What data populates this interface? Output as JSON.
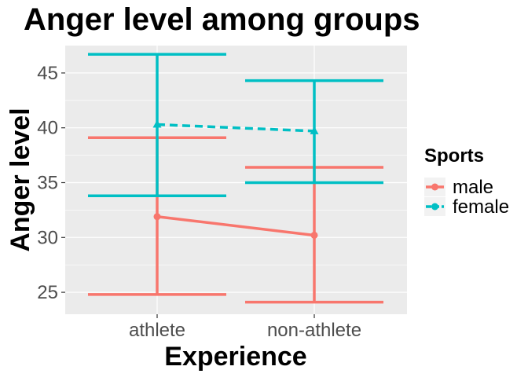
{
  "chart_data": {
    "type": "line",
    "title": "Anger level among groups",
    "xlabel": "Experience",
    "ylabel": "Anger level",
    "categories": [
      "athlete",
      "non-athlete"
    ],
    "ylim": [
      23,
      47.5
    ],
    "yticks": [
      25,
      30,
      35,
      40,
      45
    ],
    "grid": true,
    "legend": {
      "title": "Sports",
      "placement": "right"
    },
    "series": [
      {
        "name": "male",
        "color": "#F8766D",
        "linestyle": "solid",
        "marker": "circle",
        "values": [
          31.9,
          30.2
        ],
        "error_low": [
          24.8,
          24.1
        ],
        "error_high": [
          39.1,
          36.4
        ]
      },
      {
        "name": "female",
        "color": "#00BFC4",
        "linestyle": "dashed",
        "marker": "triangle",
        "values": [
          40.3,
          39.7
        ],
        "error_low": [
          33.8,
          35.0
        ],
        "error_high": [
          46.7,
          44.3
        ]
      }
    ]
  }
}
